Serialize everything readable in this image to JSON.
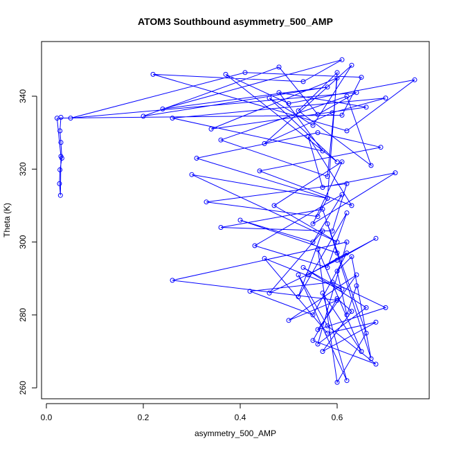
{
  "chart_data": {
    "type": "scatter",
    "connected": true,
    "title": "ATOM3 Southbound asymmetry_500_AMP",
    "xlabel": "asymmetry_500_AMP",
    "ylabel": "Theta (K)",
    "xlim": [
      -0.01,
      0.79
    ],
    "ylim": [
      257,
      355
    ],
    "xticks": [
      0.0,
      0.2,
      0.4,
      0.6
    ],
    "yticks": [
      260,
      280,
      300,
      320,
      340
    ],
    "xtick_labels": [
      "0.0",
      "0.2",
      "0.4",
      "0.6"
    ],
    "ytick_labels": [
      "260",
      "280",
      "300",
      "320",
      "340"
    ],
    "grid": false,
    "legend": "none",
    "color": "#0000ff",
    "series": [
      {
        "marker": "open-circle",
        "x": [
          0.03,
          0.028,
          0.03,
          0.032,
          0.028,
          0.027,
          0.029,
          0.03,
          0.022,
          0.61,
          0.65,
          0.41,
          0.05,
          0.64,
          0.56,
          0.48,
          0.2,
          0.58,
          0.24,
          0.61,
          0.53,
          0.22,
          0.62,
          0.76,
          0.5,
          0.37,
          0.6,
          0.46,
          0.55,
          0.63,
          0.45,
          0.59,
          0.7,
          0.26,
          0.57,
          0.48,
          0.66,
          0.34,
          0.6,
          0.58,
          0.36,
          0.62,
          0.67,
          0.52,
          0.6,
          0.58,
          0.31,
          0.56,
          0.69,
          0.44,
          0.63,
          0.54,
          0.57,
          0.72,
          0.55,
          0.61,
          0.47,
          0.6,
          0.3,
          0.58,
          0.56,
          0.33,
          0.62,
          0.59,
          0.36,
          0.57,
          0.6,
          0.4,
          0.55,
          0.61,
          0.43,
          0.58,
          0.62,
          0.52,
          0.57,
          0.46,
          0.6,
          0.68,
          0.54,
          0.62,
          0.55,
          0.42,
          0.59,
          0.7,
          0.56,
          0.64,
          0.5,
          0.6,
          0.26,
          0.62,
          0.56,
          0.66,
          0.53,
          0.61,
          0.45,
          0.58,
          0.68,
          0.57,
          0.63,
          0.6,
          0.55,
          0.68,
          0.58,
          0.52,
          0.62,
          0.57,
          0.65,
          0.56,
          0.6,
          0.66,
          0.58,
          0.67,
          0.63,
          0.6,
          0.62,
          0.64
        ],
        "y": [
          334.2,
          330.5,
          327.3,
          323.0,
          319.8,
          316.0,
          312.8,
          323.5,
          334.0,
          334.8,
          345.2,
          346.5,
          334.0,
          341.0,
          335.0,
          348.0,
          334.5,
          342.5,
          336.5,
          350.0,
          344.0,
          346.0,
          330.5,
          344.5,
          338.0,
          346.0,
          322.0,
          339.5,
          332.0,
          348.5,
          327.0,
          335.5,
          339.5,
          334.0,
          325.0,
          341.0,
          337.0,
          331.0,
          345.0,
          318.0,
          328.0,
          340.0,
          321.0,
          336.0,
          346.5,
          312.0,
          323.0,
          330.0,
          326.0,
          319.5,
          310.0,
          329.0,
          315.0,
          319.0,
          305.0,
          322.0,
          310.0,
          300.0,
          318.5,
          312.0,
          307.0,
          311.0,
          316.0,
          303.0,
          304.0,
          309.0,
          297.0,
          306.0,
          300.0,
          313.0,
          299.0,
          293.0,
          308.0,
          285.0,
          303.0,
          286.0,
          295.0,
          301.0,
          291.0,
          297.0,
          280.0,
          286.5,
          289.0,
          282.0,
          276.0,
          291.0,
          278.5,
          284.0,
          289.5,
          300.0,
          272.0,
          282.0,
          293.0,
          287.0,
          295.5,
          275.0,
          278.0,
          270.0,
          281.0,
          284.5,
          273.0,
          266.5,
          277.0,
          291.0,
          262.0,
          286.0,
          270.0,
          298.0,
          261.5,
          275.0,
          305.0,
          268.0,
          296.0,
          292.0,
          280.0,
          288.0
        ]
      }
    ]
  }
}
